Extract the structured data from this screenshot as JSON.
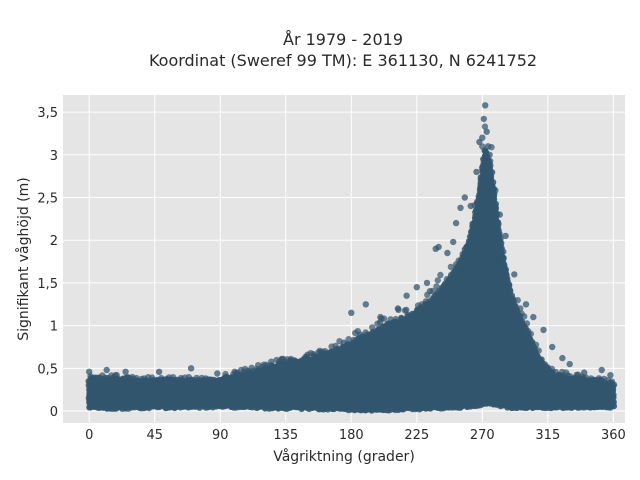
{
  "chart_data": {
    "type": "scatter",
    "title_lines": [
      "År 1979 - 2019",
      "Koordinat (Sweref 99 TM): E 361130, N 6241752"
    ],
    "xlabel": "Vågriktning (grader)",
    "ylabel": "Signifikant våghöjd (m)",
    "xlim": [
      -18,
      368
    ],
    "ylim": [
      -0.14,
      3.7
    ],
    "x_ticks": [
      0,
      45,
      90,
      135,
      180,
      225,
      270,
      315,
      360
    ],
    "x_tick_labels": [
      "0",
      "45",
      "90",
      "135",
      "180",
      "225",
      "270",
      "315",
      "360"
    ],
    "y_ticks": [
      0,
      0.5,
      1,
      1.5,
      2,
      2.5,
      3,
      3.5
    ],
    "y_tick_labels": [
      "0",
      "0,5",
      "1",
      "1,5",
      "2",
      "2,5",
      "3",
      "3,5"
    ],
    "grid": true,
    "background_color": "#e5e5e5",
    "marker_color": "#33566e",
    "envelope": {
      "description_x": [
        0,
        20,
        45,
        70,
        90,
        110,
        130,
        150,
        170,
        190,
        205,
        220,
        235,
        245,
        255,
        262,
        268,
        272,
        276,
        280,
        285,
        290,
        300,
        310,
        320,
        340,
        360
      ],
      "upper_y": [
        0.38,
        0.38,
        0.35,
        0.36,
        0.38,
        0.45,
        0.55,
        0.62,
        0.72,
        0.88,
        1.02,
        1.12,
        1.3,
        1.5,
        1.75,
        2.05,
        2.6,
        3.1,
        2.85,
        2.3,
        1.75,
        1.35,
        0.95,
        0.6,
        0.42,
        0.38,
        0.33
      ],
      "lower_y": [
        0.05,
        0.04,
        0.05,
        0.05,
        0.06,
        0.05,
        0.04,
        0.04,
        0.03,
        0.02,
        0.02,
        0.03,
        0.04,
        0.05,
        0.05,
        0.06,
        0.08,
        0.09,
        0.09,
        0.08,
        0.06,
        0.05,
        0.05,
        0.05,
        0.05,
        0.05,
        0.05
      ]
    },
    "outliers": [
      [
        0,
        0.46
      ],
      [
        12,
        0.48
      ],
      [
        25,
        0.46
      ],
      [
        48,
        0.46
      ],
      [
        70,
        0.5
      ],
      [
        88,
        0.44
      ],
      [
        132,
        0.6
      ],
      [
        150,
        0.66
      ],
      [
        175,
        0.8
      ],
      [
        180,
        1.15
      ],
      [
        190,
        1.25
      ],
      [
        200,
        1.1
      ],
      [
        212,
        1.2
      ],
      [
        218,
        1.35
      ],
      [
        225,
        1.45
      ],
      [
        232,
        1.5
      ],
      [
        238,
        1.9
      ],
      [
        240,
        1.92
      ],
      [
        246,
        1.85
      ],
      [
        250,
        1.98
      ],
      [
        252,
        2.2
      ],
      [
        255,
        2.38
      ],
      [
        258,
        2.5
      ],
      [
        262,
        2.4
      ],
      [
        264,
        2.1
      ],
      [
        266,
        2.8
      ],
      [
        268,
        3.15
      ],
      [
        270,
        3.2
      ],
      [
        271,
        3.42
      ],
      [
        272,
        3.58
      ],
      [
        273,
        3.27
      ],
      [
        274,
        3.1
      ],
      [
        275,
        3.0
      ],
      [
        278,
        2.6
      ],
      [
        282,
        2.3
      ],
      [
        286,
        2.05
      ],
      [
        292,
        1.6
      ],
      [
        300,
        1.25
      ],
      [
        305,
        1.1
      ],
      [
        312,
        0.95
      ],
      [
        318,
        0.75
      ],
      [
        325,
        0.62
      ],
      [
        330,
        0.55
      ],
      [
        340,
        0.45
      ],
      [
        352,
        0.48
      ],
      [
        358,
        0.42
      ]
    ]
  }
}
